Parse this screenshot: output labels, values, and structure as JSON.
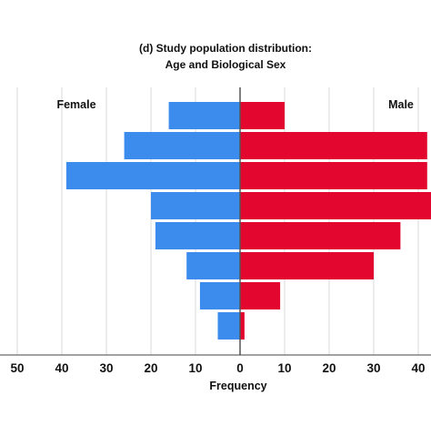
{
  "chart_data": {
    "type": "bar",
    "orientation": "horizontal-population-pyramid",
    "title_line1": "(d) Study population distribution:",
    "title_line2": "Age and Biological Sex",
    "xlabel": "Frequency",
    "female_label": "Female",
    "male_label": "Male",
    "xlim": [
      -50,
      42
    ],
    "x_ticks": [
      -50,
      -40,
      -30,
      -20,
      -10,
      0,
      10,
      20,
      30,
      40
    ],
    "x_tick_labels": [
      "50",
      "40",
      "30",
      "20",
      "10",
      "0",
      "10",
      "20",
      "30",
      "40"
    ],
    "grid": "vertical",
    "series": [
      {
        "name": "Female",
        "color": "#3b8ced",
        "values": [
          16,
          26,
          39,
          20,
          19,
          12,
          9,
          5
        ]
      },
      {
        "name": "Male",
        "color": "#e3072f",
        "values": [
          10,
          42,
          42,
          46,
          36,
          30,
          9,
          1
        ]
      }
    ],
    "bar_order": "top-to-bottom"
  }
}
